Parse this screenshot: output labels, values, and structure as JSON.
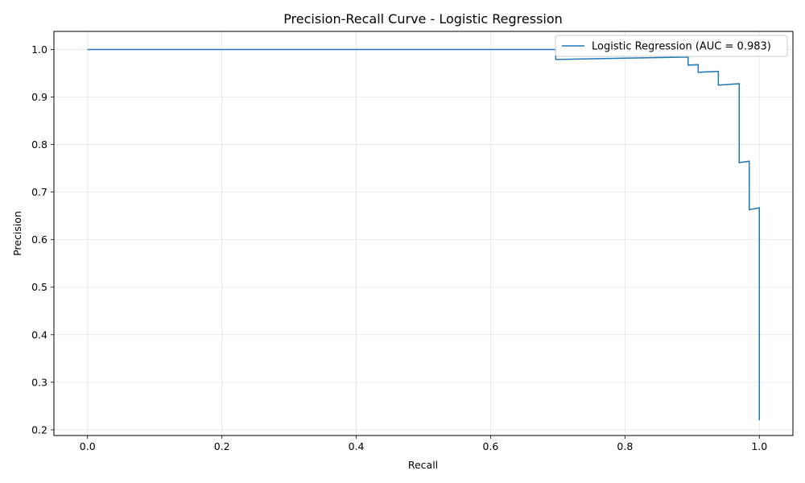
{
  "chart_data": {
    "type": "line",
    "title": "Precision-Recall Curve - Logistic Regression",
    "xlabel": "Recall",
    "ylabel": "Precision",
    "xlim": [
      -0.05,
      1.05
    ],
    "ylim": [
      0.188,
      1.038
    ],
    "xticks": [
      "0.0",
      "0.2",
      "0.4",
      "0.6",
      "0.8",
      "1.0"
    ],
    "yticks": [
      "0.2",
      "0.3",
      "0.4",
      "0.5",
      "0.6",
      "0.7",
      "0.8",
      "0.9",
      "1.0"
    ],
    "grid": true,
    "legend_position": "top-right",
    "series": [
      {
        "name": "Logistic Regression (AUC = 0.983)",
        "color": "#1f77b4",
        "x": [
          0.0,
          0.697,
          0.697,
          0.894,
          0.894,
          0.909,
          0.909,
          0.939,
          0.939,
          0.97,
          0.97,
          0.985,
          0.985,
          1.0,
          1.0
        ],
        "y": [
          1.0,
          1.0,
          0.979,
          0.984,
          0.967,
          0.968,
          0.952,
          0.954,
          0.925,
          0.928,
          0.762,
          0.765,
          0.663,
          0.667,
          0.22
        ]
      }
    ]
  }
}
